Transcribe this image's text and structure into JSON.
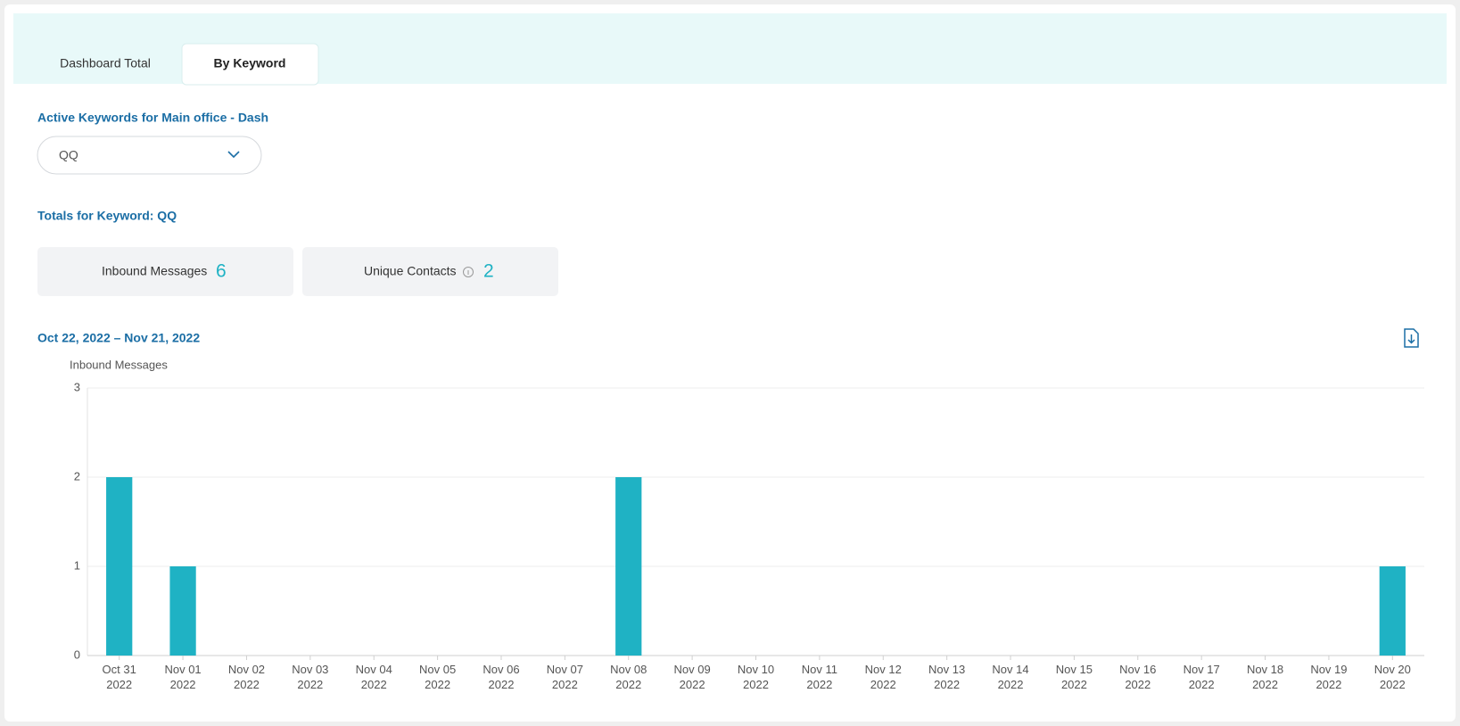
{
  "tabs": [
    "Dashboard Total",
    "By Keyword"
  ],
  "keyword_label": "Active Keywords for Main office - Dash",
  "dropdown": {
    "selected": "QQ"
  },
  "totals_label": "Totals for Keyword: QQ",
  "stats": [
    {
      "label": "Inbound Messages",
      "value": 6
    },
    {
      "label": "Unique Contacts",
      "value": 2
    }
  ],
  "date_range": "Oct 22, 2022 – Nov 21, 2022",
  "chart_data": {
    "type": "bar",
    "y_label": "Inbound Messages",
    "categories": [
      "Oct 31 2022",
      "Nov 01 2022",
      "Nov 02 2022",
      "Nov 03 2022",
      "Nov 04 2022",
      "Nov 05 2022",
      "Nov 06 2022",
      "Nov 07 2022",
      "Nov 08 2022",
      "Nov 09 2022",
      "Nov 10 2022",
      "Nov 11 2022",
      "Nov 12 2022",
      "Nov 13 2022",
      "Nov 14 2022",
      "Nov 15 2022",
      "Nov 16 2022",
      "Nov 17 2022",
      "Nov 18 2022",
      "Nov 19 2022",
      "Nov 20 2022"
    ],
    "values": [
      2,
      1,
      0,
      0,
      0,
      0,
      0,
      0,
      2,
      0,
      0,
      0,
      0,
      0,
      0,
      0,
      0,
      0,
      0,
      0,
      1
    ],
    "color": "#1fb2c4",
    "ylim": [
      0,
      3
    ],
    "yticks": [
      0,
      1,
      2,
      3
    ],
    "grid": true
  }
}
